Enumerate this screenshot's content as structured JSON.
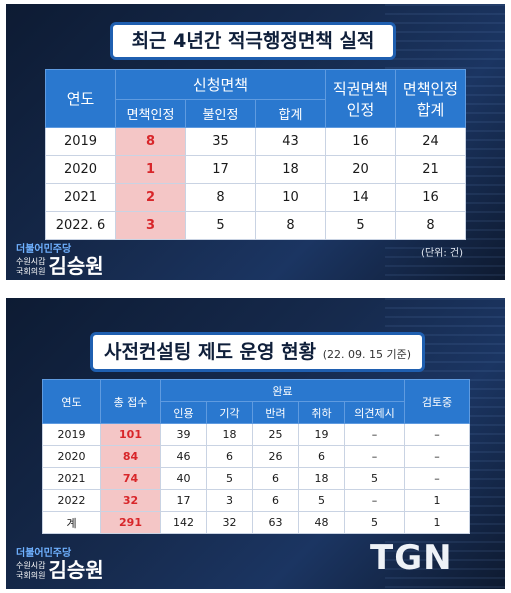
{
  "panel1": {
    "title": "최근 4년간 적극행정면책 실적",
    "headers": {
      "year": "연도",
      "applied": "신청면책",
      "applied_granted": "면책인정",
      "applied_denied": "불인정",
      "applied_total": "합계",
      "exofficio_line1": "직권면책",
      "exofficio_line2": "인정",
      "total_line1": "면책인정",
      "total_line2": "합계"
    },
    "rows": [
      {
        "year": "2019",
        "granted": "8",
        "denied": "35",
        "total": "43",
        "exofficio": "16",
        "sum": "24"
      },
      {
        "year": "2020",
        "granted": "1",
        "denied": "17",
        "total": "18",
        "exofficio": "20",
        "sum": "21"
      },
      {
        "year": "2021",
        "granted": "2",
        "denied": "8",
        "total": "10",
        "exofficio": "14",
        "sum": "16"
      },
      {
        "year": "2022. 6",
        "granted": "3",
        "denied": "5",
        "total": "8",
        "exofficio": "5",
        "sum": "8"
      }
    ],
    "unit": "(단위: 건)",
    "party": "더불어민주당",
    "role_line1": "수원시갑",
    "role_line2": "국회의원",
    "name": "김승원"
  },
  "panel2": {
    "title": "사전컨설팅 제도 운영 현황",
    "subtitle": "(22. 09. 15 기준)",
    "headers": {
      "year": "연도",
      "total": "총 접수",
      "done": "완료",
      "review": "검토중",
      "accepted": "인용",
      "dismissed": "기각",
      "returned": "반려",
      "withdrawn": "취하",
      "opinion": "의견제시"
    },
    "rows": [
      {
        "year": "2019",
        "total": "101",
        "accepted": "39",
        "dismissed": "18",
        "returned": "25",
        "withdrawn": "19",
        "opinion": "–",
        "review": "–"
      },
      {
        "year": "2020",
        "total": "84",
        "accepted": "46",
        "dismissed": "6",
        "returned": "26",
        "withdrawn": "6",
        "opinion": "–",
        "review": "–"
      },
      {
        "year": "2021",
        "total": "74",
        "accepted": "40",
        "dismissed": "5",
        "returned": "6",
        "withdrawn": "18",
        "opinion": "5",
        "review": "–"
      },
      {
        "year": "2022",
        "total": "32",
        "accepted": "17",
        "dismissed": "3",
        "returned": "6",
        "withdrawn": "5",
        "opinion": "–",
        "review": "1"
      },
      {
        "year": "계",
        "total": "291",
        "accepted": "142",
        "dismissed": "32",
        "returned": "63",
        "withdrawn": "48",
        "opinion": "5",
        "review": "1"
      }
    ],
    "party": "더불어민주당",
    "role_line1": "수원시갑",
    "role_line2": "국회의원",
    "name": "김승원",
    "logo": "TGN"
  }
}
